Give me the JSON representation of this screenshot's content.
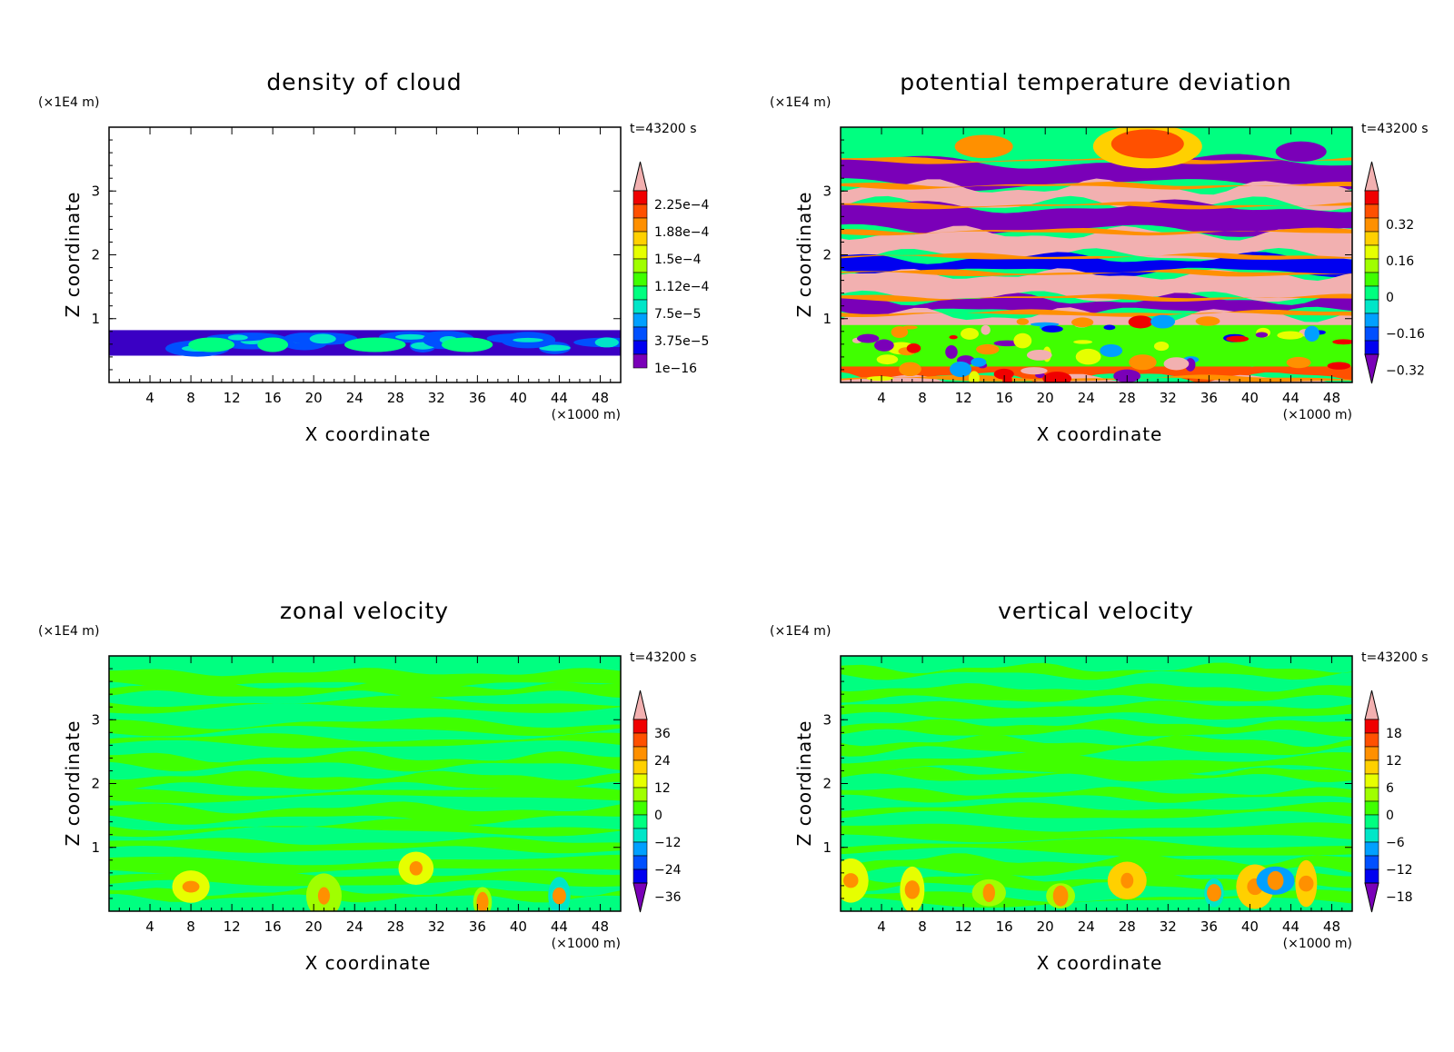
{
  "chart_data": [
    {
      "type": "heatmap",
      "title": "density of cloud",
      "xlabel": "X coordinate",
      "ylabel": "Z coordinate",
      "x_unit": "(×1000 m)",
      "y_unit": "(×1E4 m)",
      "time_label": "t=43200 s",
      "x_ticks": [
        "4",
        "8",
        "12",
        "16",
        "20",
        "24",
        "28",
        "32",
        "36",
        "40",
        "44",
        "48"
      ],
      "y_ticks": [
        "1",
        "2",
        "3"
      ],
      "xlim": [
        0,
        50
      ],
      "ylim": [
        0,
        4
      ],
      "colorbar": {
        "labels": [
          "2.25e−4",
          "1.88e−4",
          "1.5e−4",
          "1.12e−4",
          "7.5e−5",
          "3.75e−5",
          "1e−16"
        ],
        "colors": [
          "#7a00b8",
          "#3a00c4",
          "#0000f0",
          "#0050ff",
          "#00a0ff",
          "#00e6c8",
          "#00ff80",
          "#40ff00",
          "#a0ff00",
          "#e6ff00",
          "#ffd000",
          "#ff9000",
          "#ff5000",
          "#f00000",
          "#f2b0b0"
        ],
        "has_bottom_arrow": false
      },
      "field_description": "cloud layer between z=0.4 and z=0.8 (x1E4 m), mostly low values with patches up to ~1.1e-4",
      "cloud_layer": {
        "z_bottom": 0.42,
        "z_top": 0.82
      }
    },
    {
      "type": "heatmap",
      "title": "potential temperature deviation",
      "xlabel": "X coordinate",
      "ylabel": "Z coordinate",
      "x_unit": "(×1000 m)",
      "y_unit": "(×1E4 m)",
      "time_label": "t=43200 s",
      "x_ticks": [
        "4",
        "8",
        "12",
        "16",
        "20",
        "24",
        "28",
        "32",
        "36",
        "40",
        "44",
        "48"
      ],
      "y_ticks": [
        "1",
        "2",
        "3"
      ],
      "xlim": [
        0,
        50
      ],
      "ylim": [
        0,
        4
      ],
      "colorbar": {
        "labels": [
          "0.32",
          "0.16",
          "0",
          "−0.16",
          "−0.32"
        ],
        "colors": [
          "#7a00b8",
          "#3a00c4",
          "#0000f0",
          "#0050ff",
          "#00a0ff",
          "#00e6c8",
          "#00ff80",
          "#40ff00",
          "#a0ff00",
          "#e6ff00",
          "#ffd000",
          "#ff9000",
          "#ff5000",
          "#f00000",
          "#f2b0b0"
        ],
        "has_bottom_arrow": true
      }
    },
    {
      "type": "heatmap",
      "title": "zonal velocity",
      "xlabel": "X coordinate",
      "ylabel": "Z coordinate",
      "x_unit": "(×1000 m)",
      "y_unit": "(×1E4 m)",
      "time_label": "t=43200 s",
      "x_ticks": [
        "4",
        "8",
        "12",
        "16",
        "20",
        "24",
        "28",
        "32",
        "36",
        "40",
        "44",
        "48"
      ],
      "y_ticks": [
        "1",
        "2",
        "3"
      ],
      "xlim": [
        0,
        50
      ],
      "ylim": [
        0,
        4
      ],
      "colorbar": {
        "labels": [
          "36",
          "24",
          "12",
          "0",
          "−12",
          "−24",
          "−36"
        ],
        "colors": [
          "#7a00b8",
          "#3a00c4",
          "#0000f0",
          "#0050ff",
          "#00a0ff",
          "#00e6c8",
          "#00ff80",
          "#40ff00",
          "#a0ff00",
          "#e6ff00",
          "#ffd000",
          "#ff9000",
          "#ff5000",
          "#f00000",
          "#f2b0b0"
        ],
        "has_bottom_arrow": true
      }
    },
    {
      "type": "heatmap",
      "title": "vertical velocity",
      "xlabel": "X coordinate",
      "ylabel": "Z coordinate",
      "x_unit": "(×1000 m)",
      "y_unit": "(×1E4 m)",
      "time_label": "t=43200 s",
      "x_ticks": [
        "4",
        "8",
        "12",
        "16",
        "20",
        "24",
        "28",
        "32",
        "36",
        "40",
        "44",
        "48"
      ],
      "y_ticks": [
        "1",
        "2",
        "3"
      ],
      "xlim": [
        0,
        50
      ],
      "ylim": [
        0,
        4
      ],
      "colorbar": {
        "labels": [
          "18",
          "12",
          "6",
          "0",
          "−6",
          "−12",
          "−18"
        ],
        "colors": [
          "#7a00b8",
          "#3a00c4",
          "#0000f0",
          "#0050ff",
          "#00a0ff",
          "#00e6c8",
          "#00ff80",
          "#40ff00",
          "#a0ff00",
          "#e6ff00",
          "#ffd000",
          "#ff9000",
          "#ff5000",
          "#f00000",
          "#f2b0b0"
        ],
        "has_bottom_arrow": true
      }
    }
  ]
}
